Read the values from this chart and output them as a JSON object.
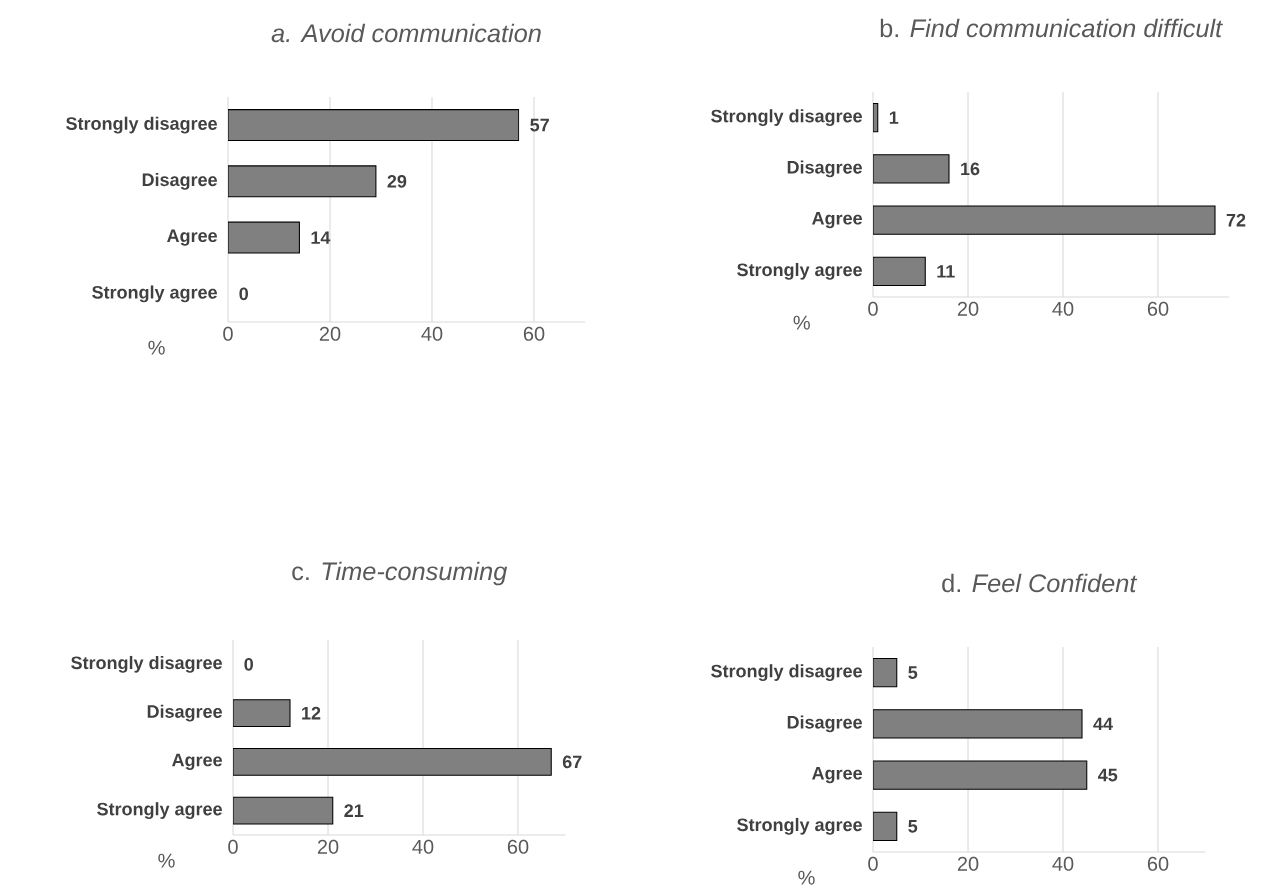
{
  "chart_data": [
    {
      "type": "bar",
      "orientation": "horizontal",
      "title": "*a. Avoid communication*",
      "xlabel": "%",
      "categories": [
        "Strongly disagree",
        "Disagree",
        "Agree",
        "Strongly agree"
      ],
      "values": [
        57,
        29,
        14,
        0
      ],
      "color": "#808080",
      "xlim": [
        0,
        70
      ],
      "xticks": [
        0,
        20,
        40,
        60
      ],
      "grid": "x",
      "data_labels": true
    },
    {
      "type": "bar",
      "orientation": "horizontal",
      "title": "b. *Find communication difficult*",
      "xlabel": "%",
      "categories": [
        "Strongly disagree",
        "Disagree",
        "Agree",
        "Strongly agree"
      ],
      "values": [
        1,
        16,
        72,
        11
      ],
      "color": "#808080",
      "xlim": [
        0,
        75
      ],
      "xticks": [
        0,
        20,
        40,
        60
      ],
      "grid": "x",
      "data_labels": true
    },
    {
      "type": "bar",
      "orientation": "horizontal",
      "title": "c. *Time-consuming*",
      "xlabel": "%",
      "categories": [
        "Strongly disagree",
        "Disagree",
        "Agree",
        "Strongly agree"
      ],
      "values": [
        0,
        12,
        67,
        21
      ],
      "color": "#808080",
      "xlim": [
        0,
        70
      ],
      "xticks": [
        0,
        20,
        40,
        60
      ],
      "grid": "x",
      "data_labels": true
    },
    {
      "type": "bar",
      "orientation": "horizontal",
      "title": "d. *Feel Confident*",
      "xlabel": "%",
      "categories": [
        "Strongly disagree",
        "Disagree",
        "Agree",
        "Strongly agree"
      ],
      "values": [
        5,
        44,
        45,
        5
      ],
      "color": "#808080",
      "xlim": [
        0,
        70
      ],
      "xticks": [
        0,
        20,
        40,
        60
      ],
      "grid": "x",
      "data_labels": true
    }
  ]
}
